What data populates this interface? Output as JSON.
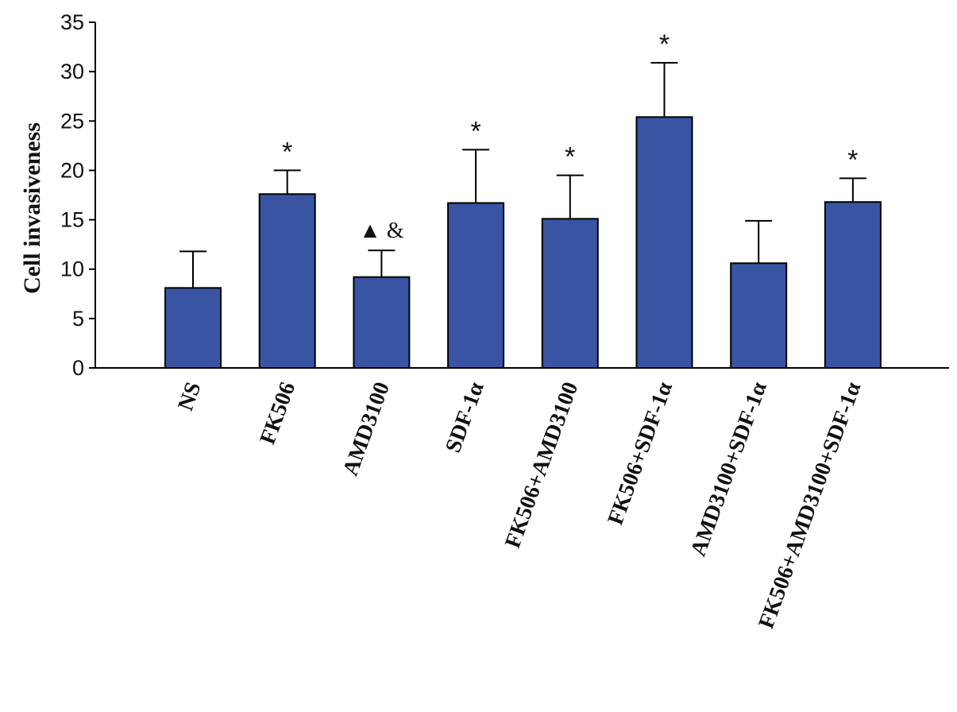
{
  "chart_data": {
    "type": "bar",
    "title": "",
    "xlabel": "",
    "ylabel": "Cell  invasiveness",
    "ylim": [
      0,
      35
    ],
    "yticks": [
      0,
      5,
      10,
      15,
      20,
      25,
      30,
      35
    ],
    "grid": false,
    "categories": [
      "NS",
      "FK506",
      "AMD3100",
      "SDF-1α",
      "FK506+AMD3100",
      "FK506+SDF-1α",
      "AMD3100+SDF-1α",
      "FK506+AMD3100+SDF-1α"
    ],
    "values": [
      8.1,
      17.6,
      9.2,
      16.7,
      15.1,
      25.4,
      10.6,
      16.8
    ],
    "errors": [
      3.7,
      2.4,
      2.7,
      5.4,
      4.4,
      5.5,
      4.3,
      2.4
    ],
    "annotations": [
      "",
      "*",
      "▲ &",
      "*",
      "*",
      "*",
      "",
      "*"
    ],
    "bar_color": "#3a54a4"
  }
}
